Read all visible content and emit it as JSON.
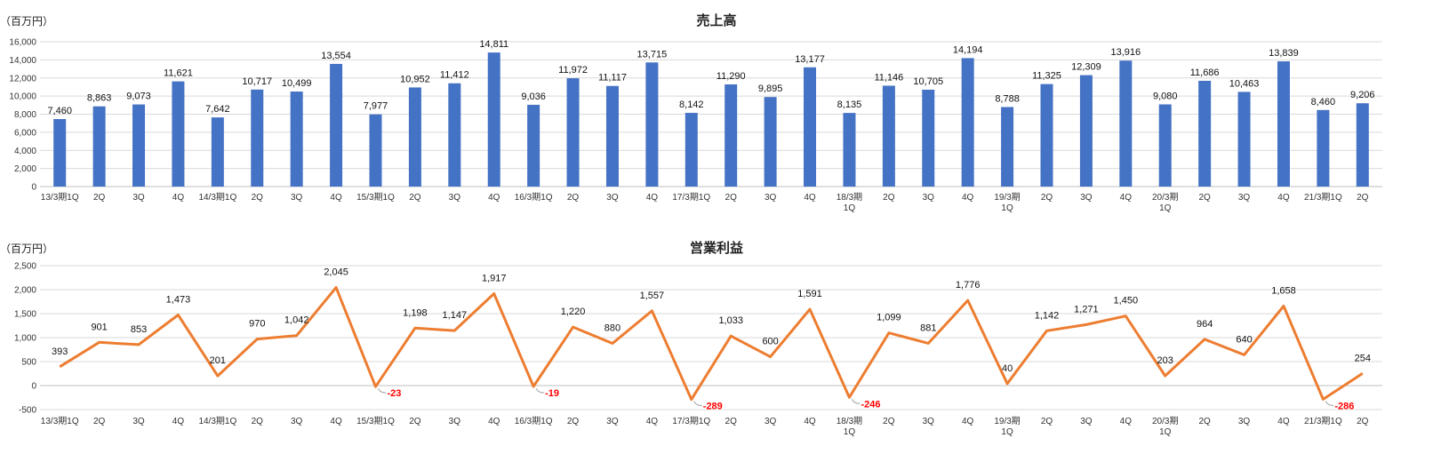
{
  "chart_data": [
    {
      "type": "bar",
      "title": "売上高",
      "unit_label": "（百万円）",
      "ylim": [
        0,
        16000
      ],
      "yticks": [
        "0",
        "2,000",
        "4,000",
        "6,000",
        "8,000",
        "10,000",
        "12,000",
        "14,000",
        "16,000"
      ],
      "ytick_values": [
        0,
        2000,
        4000,
        6000,
        8000,
        10000,
        12000,
        14000,
        16000
      ],
      "grid": true,
      "color": "#4472c4",
      "categories": [
        "13/3期1Q",
        "2Q",
        "3Q",
        "4Q",
        "14/3期1Q",
        "2Q",
        "3Q",
        "4Q",
        "15/3期1Q",
        "2Q",
        "3Q",
        "4Q",
        "16/3期1Q",
        "2Q",
        "3Q",
        "4Q",
        "17/3期1Q",
        "2Q",
        "3Q",
        "4Q",
        "18/3期\n1Q",
        "2Q",
        "3Q",
        "4Q",
        "19/3期\n1Q",
        "2Q",
        "3Q",
        "4Q",
        "20/3期\n1Q",
        "2Q",
        "3Q",
        "4Q",
        "21/3期1Q",
        "2Q"
      ],
      "values": [
        7460,
        8863,
        9073,
        11621,
        7642,
        10717,
        10499,
        13554,
        7977,
        10952,
        11412,
        14811,
        9036,
        11972,
        11117,
        13715,
        8142,
        11290,
        9895,
        13177,
        8135,
        11146,
        10705,
        14194,
        8788,
        11325,
        12309,
        13916,
        9080,
        11686,
        10463,
        13839,
        8460,
        9206
      ],
      "labels": [
        "7,460",
        "8,863",
        "9,073",
        "11,621",
        "7,642",
        "10,717",
        "10,499",
        "13,554",
        "7,977",
        "10,952",
        "11,412",
        "14,811",
        "9,036",
        "11,972",
        "11,117",
        "13,715",
        "8,142",
        "11,290",
        "9,895",
        "13,177",
        "8,135",
        "11,146",
        "10,705",
        "14,194",
        "8,788",
        "11,325",
        "12,309",
        "13,916",
        "9,080",
        "11,686",
        "10,463",
        "13,839",
        "8,460",
        "9,206"
      ]
    },
    {
      "type": "line",
      "title": "営業利益",
      "unit_label": "（百万円）",
      "ylim": [
        -500,
        2500
      ],
      "yticks": [
        "-500",
        "0",
        "500",
        "1,000",
        "1,500",
        "2,000",
        "2,500"
      ],
      "ytick_values": [
        -500,
        0,
        500,
        1000,
        1500,
        2000,
        2500
      ],
      "grid": true,
      "color": "#ed7d31",
      "negative_label_color": "#ff0000",
      "categories": [
        "13/3期1Q",
        "2Q",
        "3Q",
        "4Q",
        "14/3期1Q",
        "2Q",
        "3Q",
        "4Q",
        "15/3期1Q",
        "2Q",
        "3Q",
        "4Q",
        "16/3期1Q",
        "2Q",
        "3Q",
        "4Q",
        "17/3期1Q",
        "2Q",
        "3Q",
        "4Q",
        "18/3期\n1Q",
        "2Q",
        "3Q",
        "4Q",
        "19/3期\n1Q",
        "2Q",
        "3Q",
        "4Q",
        "20/3期\n1Q",
        "2Q",
        "3Q",
        "4Q",
        "21/3期1Q",
        "2Q"
      ],
      "values": [
        393,
        901,
        853,
        1473,
        201,
        970,
        1042,
        2045,
        -23,
        1198,
        1147,
        1917,
        -19,
        1220,
        880,
        1557,
        -289,
        1033,
        600,
        1591,
        -246,
        1099,
        881,
        1776,
        40,
        1142,
        1271,
        1450,
        203,
        964,
        640,
        1658,
        -286,
        254
      ],
      "labels": [
        "393",
        "901",
        "853",
        "1,473",
        "201",
        "970",
        "1,042",
        "2,045",
        "-23",
        "1,198",
        "1,147",
        "1,917",
        "-19",
        "1,220",
        "880",
        "1,557",
        "-289",
        "1,033",
        "600",
        "1,591",
        "-246",
        "1,099",
        "881",
        "1,776",
        "40",
        "1,142",
        "1,271",
        "1,450",
        "203",
        "964",
        "640",
        "1,658",
        "-286",
        "254"
      ]
    }
  ]
}
